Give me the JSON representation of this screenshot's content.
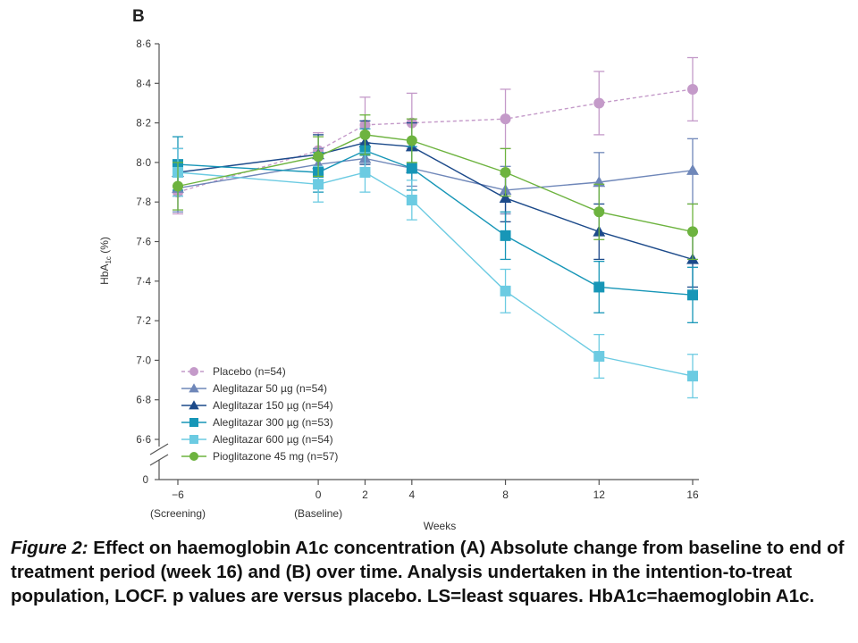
{
  "panel_label": "B",
  "caption": {
    "lead": "Figure 2:",
    "text": " Effect on haemoglobin A1c concentration (A) Absolute change from baseline to end of treatment period (week 16) and (B) over time. Analysis undertaken in the intention-to-treat population, LOCF. p values are versus placebo. LS=least squares. HbA1c=haemoglobin A1c."
  },
  "chart_data": {
    "type": "line",
    "title": "",
    "xlabel": "Weeks",
    "ylabel_main": "HbA",
    "ylabel_sub": "1c",
    "ylabel_unit": " (%)",
    "x_ticks": [
      {
        "value": -6,
        "label": "−6",
        "sublabel": "(Screening)"
      },
      {
        "value": 0,
        "label": "0",
        "sublabel": "(Baseline)"
      },
      {
        "value": 2,
        "label": "2",
        "sublabel": ""
      },
      {
        "value": 4,
        "label": "4",
        "sublabel": ""
      },
      {
        "value": 8,
        "label": "8",
        "sublabel": ""
      },
      {
        "value": 12,
        "label": "12",
        "sublabel": ""
      },
      {
        "value": 16,
        "label": "16",
        "sublabel": ""
      }
    ],
    "y_ticks": [
      {
        "value": 8.6,
        "label": "8·6"
      },
      {
        "value": 8.4,
        "label": "8·4"
      },
      {
        "value": 8.2,
        "label": "8·2"
      },
      {
        "value": 8.0,
        "label": "8·0"
      },
      {
        "value": 7.8,
        "label": "7·8"
      },
      {
        "value": 7.6,
        "label": "7·6"
      },
      {
        "value": 7.4,
        "label": "7·4"
      },
      {
        "value": 7.2,
        "label": "7·2"
      },
      {
        "value": 7.0,
        "label": "7·0"
      },
      {
        "value": 6.8,
        "label": "6·8"
      },
      {
        "value": 6.6,
        "label": "6·6"
      }
    ],
    "y_zero_label": "0",
    "ylim": [
      6.6,
      8.6
    ],
    "axis_break": true,
    "legend_position": "lower-left",
    "x": [
      -6,
      0,
      2,
      4,
      8,
      12,
      16
    ],
    "series": [
      {
        "name": "Placebo (n=54)",
        "color": "#c49ac9",
        "marker": "circle",
        "dashed": true,
        "values": [
          7.85,
          8.06,
          8.19,
          8.2,
          8.22,
          8.3,
          8.37
        ],
        "lower": [
          7.74,
          7.97,
          8.06,
          8.07,
          8.07,
          8.14,
          8.21
        ],
        "upper": [
          7.96,
          8.15,
          8.33,
          8.35,
          8.37,
          8.46,
          8.53
        ]
      },
      {
        "name": "Aleglitazar 50 µg (n=54)",
        "color": "#6f87b9",
        "marker": "triangle",
        "dashed": false,
        "values": [
          7.87,
          7.99,
          8.02,
          7.97,
          7.86,
          7.9,
          7.96
        ],
        "lower": [
          7.75,
          7.91,
          7.94,
          7.88,
          7.74,
          7.76,
          7.79
        ],
        "upper": [
          7.99,
          8.07,
          8.1,
          8.06,
          7.98,
          8.05,
          8.12
        ]
      },
      {
        "name": "Aleglitazar 150 µg (n=54)",
        "color": "#1c4a8a",
        "marker": "triangle",
        "dashed": false,
        "values": [
          7.95,
          8.04,
          8.1,
          8.08,
          7.82,
          7.65,
          7.51
        ],
        "lower": [
          7.83,
          7.94,
          7.99,
          7.96,
          7.7,
          7.51,
          7.37
        ],
        "upper": [
          8.07,
          8.14,
          8.21,
          8.2,
          7.94,
          7.79,
          7.65
        ]
      },
      {
        "name": "Aleglitazar 300 µg (n=53)",
        "color": "#1796b7",
        "marker": "square",
        "dashed": false,
        "values": [
          7.99,
          7.95,
          8.06,
          7.97,
          7.63,
          7.37,
          7.33
        ],
        "lower": [
          7.86,
          7.85,
          7.95,
          7.86,
          7.51,
          7.24,
          7.19
        ],
        "upper": [
          8.13,
          8.05,
          8.17,
          8.08,
          7.75,
          7.5,
          7.47
        ]
      },
      {
        "name": "Aleglitazar 600 µg (n=54)",
        "color": "#6ccbe2",
        "marker": "square",
        "dashed": false,
        "values": [
          7.95,
          7.89,
          7.95,
          7.81,
          7.35,
          7.02,
          6.92
        ],
        "lower": [
          7.83,
          7.8,
          7.85,
          7.71,
          7.24,
          6.91,
          6.81
        ],
        "upper": [
          8.07,
          7.98,
          8.05,
          7.91,
          7.46,
          7.13,
          7.03
        ]
      },
      {
        "name": "Pioglitazone 45 mg (n=57)",
        "color": "#6db33f",
        "marker": "circle",
        "dashed": false,
        "values": [
          7.88,
          8.03,
          8.14,
          8.11,
          7.95,
          7.75,
          7.65
        ],
        "lower": [
          7.76,
          7.93,
          8.04,
          8.0,
          7.83,
          7.61,
          7.51
        ],
        "upper": [
          8.0,
          8.13,
          8.24,
          8.22,
          8.07,
          7.89,
          7.79
        ]
      }
    ]
  }
}
